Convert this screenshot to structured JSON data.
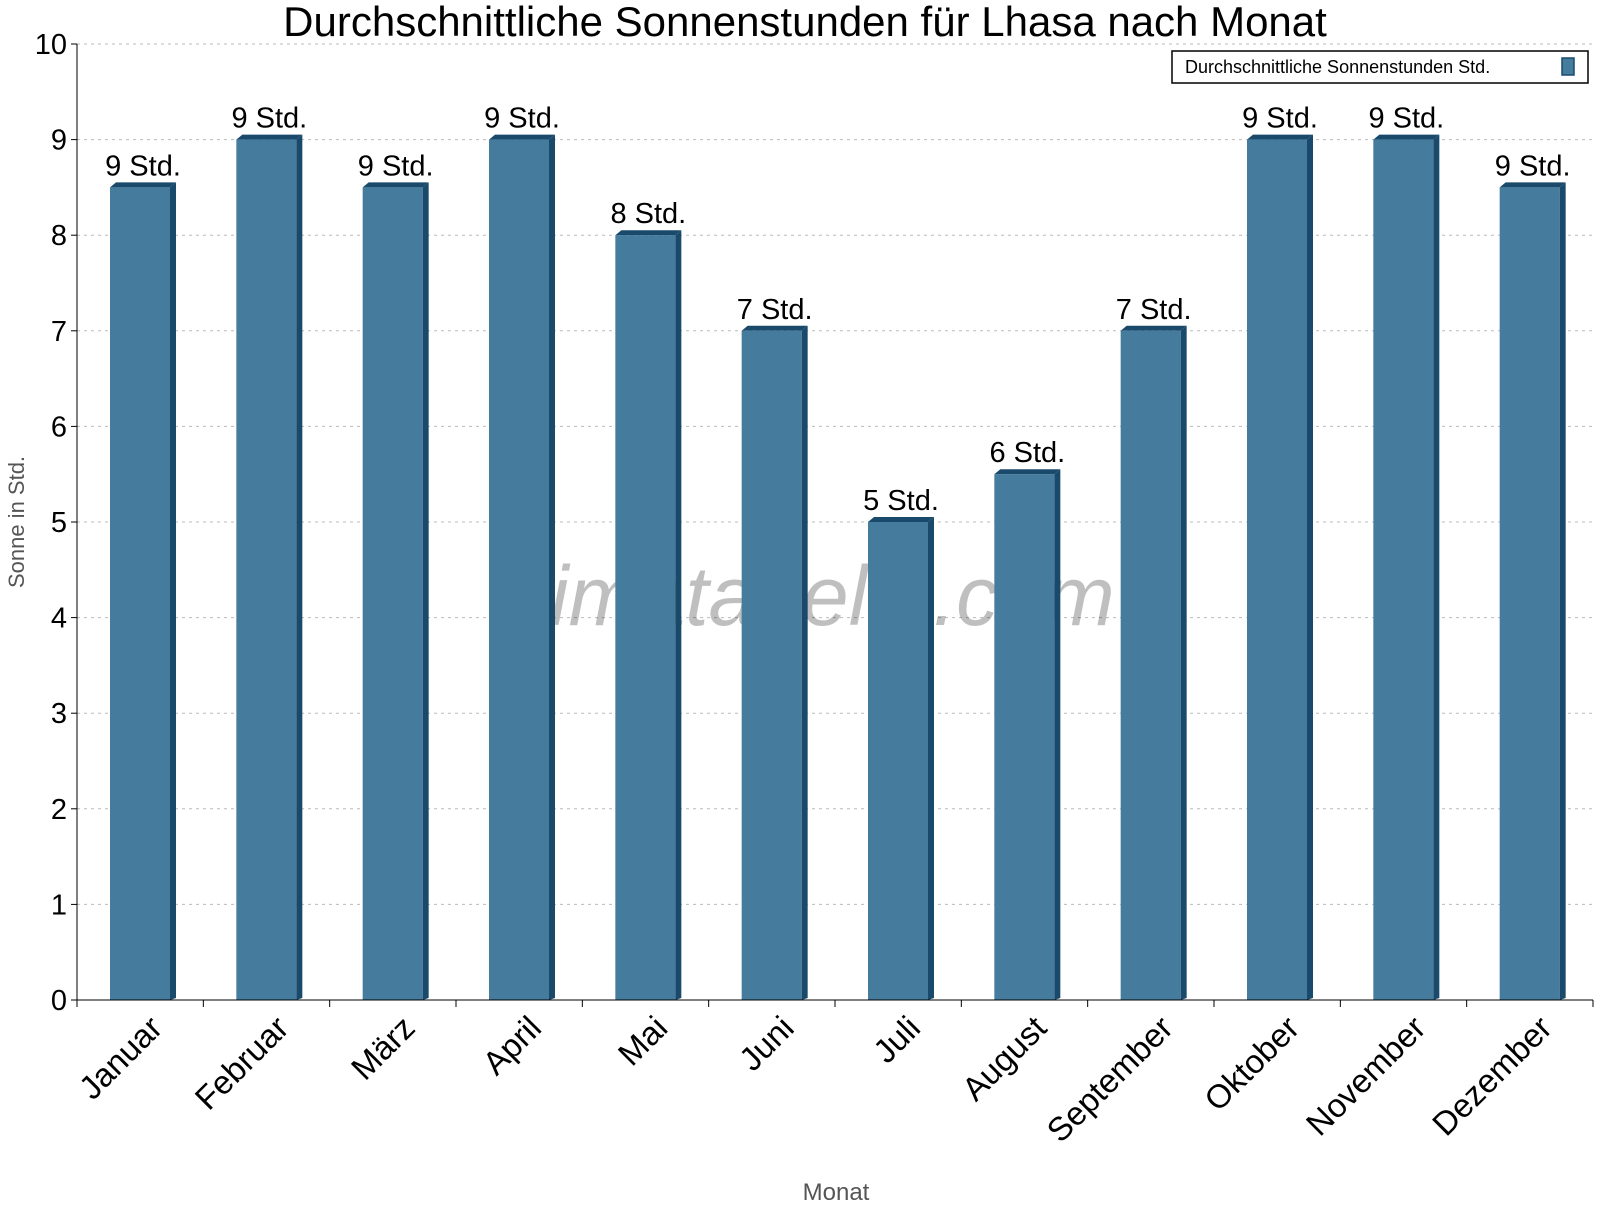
{
  "chart_data": {
    "type": "bar",
    "title": "Durchschnittliche Sonnenstunden für Lhasa nach Monat",
    "xlabel": "Monat",
    "ylabel": "Sonne in Std.",
    "ylim": [
      0,
      10
    ],
    "yticks": [
      "0",
      "1",
      "2",
      "3",
      "4",
      "5",
      "6",
      "7",
      "8",
      "9",
      "10"
    ],
    "grid": true,
    "legend_placement": "top-right",
    "categories": [
      "Januar",
      "Februar",
      "März",
      "April",
      "Mai",
      "Juni",
      "Juli",
      "August",
      "September",
      "Oktober",
      "November",
      "Dezember"
    ],
    "series": [
      {
        "name": "Durchschnittliche Sonnenstunden Std.",
        "values": [
          8.5,
          9,
          8.5,
          9,
          8,
          7,
          5,
          5.5,
          7,
          9,
          9,
          8.5
        ],
        "labels": [
          "9 Std.",
          "9 Std.",
          "9 Std.",
          "9 Std.",
          "8 Std.",
          "7 Std.",
          "5 Std.",
          "6 Std.",
          "7 Std.",
          "9 Std.",
          "9 Std.",
          "9 Std."
        ],
        "color": "#457b9d",
        "side_color": "#1a4a6b"
      }
    ],
    "watermark": "klimatabelle.com"
  }
}
